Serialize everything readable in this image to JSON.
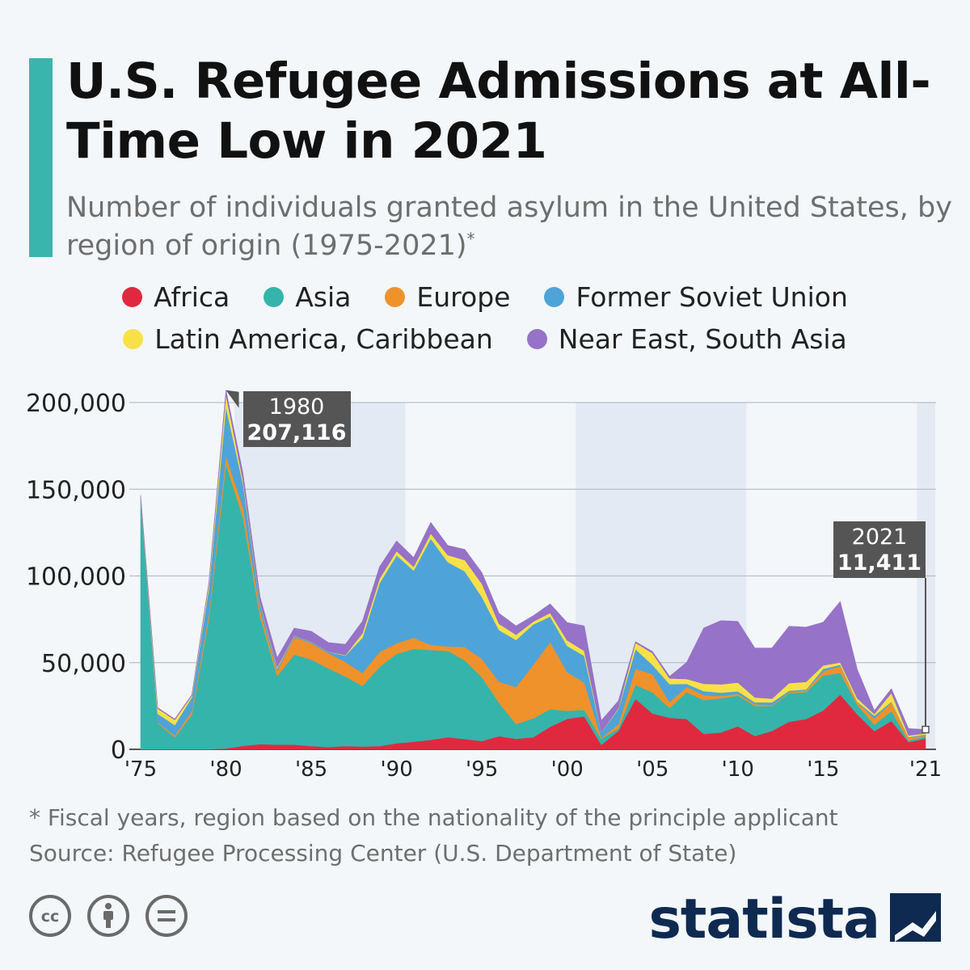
{
  "title": "U.S. Refugee Admissions at All-Time Low in 2021",
  "subtitle": "Number of individuals granted asylum in the United States, by region of origin (1975-2021)",
  "subtitle_mark": "*",
  "footnote": "* Fiscal years, region based on the nationality of the principle applicant",
  "source": "Source: Refugee Processing Center (U.S. Department of State)",
  "brand": "statista",
  "colors": {
    "accent": "#3ab5ad",
    "africa": "#e0293f",
    "asia": "#35b4ab",
    "europe": "#f0922b",
    "soviet": "#4ea4d8",
    "latin": "#f8e148",
    "neareast": "#9672c8",
    "brand": "#0e2a50"
  },
  "icons": [
    "cc-icon",
    "attribution-icon",
    "no-derivatives-icon",
    "statista-logo-icon"
  ],
  "chart_data": {
    "type": "area",
    "stacked": true,
    "ylim": [
      0,
      200000
    ],
    "y_ticks": [
      "0",
      "50,000",
      "100,000",
      "150,000",
      "200,000"
    ],
    "y_tick_values": [
      0,
      50000,
      100000,
      150000,
      200000
    ],
    "x_ticks": [
      "'75",
      "'80",
      "'85",
      "'90",
      "'95",
      "'00",
      "'05",
      "'10",
      "'15",
      "'21"
    ],
    "x_tick_years": [
      1975,
      1980,
      1985,
      1990,
      1995,
      2000,
      2005,
      2010,
      2015,
      2021
    ],
    "grid": true,
    "shaded_year_ranges": [
      [
        1981,
        1990
      ],
      [
        2001,
        2010
      ],
      [
        2021,
        2021
      ]
    ],
    "legend_position": "top",
    "x": [
      1975,
      1976,
      1977,
      1978,
      1979,
      1980,
      1981,
      1982,
      1983,
      1984,
      1985,
      1986,
      1987,
      1988,
      1989,
      1990,
      1991,
      1992,
      1993,
      1994,
      1995,
      1996,
      1997,
      1998,
      1999,
      2000,
      2001,
      2002,
      2003,
      2004,
      2005,
      2006,
      2007,
      2008,
      2009,
      2010,
      2011,
      2012,
      2013,
      2014,
      2015,
      2016,
      2017,
      2018,
      2019,
      2020,
      2021
    ],
    "series": [
      {
        "name": "Africa",
        "values": [
          0,
          0,
          0,
          0,
          0,
          500,
          2000,
          3000,
          2700,
          2700,
          1900,
          1300,
          1900,
          1600,
          1900,
          3500,
          4400,
          5500,
          7000,
          5900,
          4800,
          7600,
          6100,
          7000,
          13000,
          17600,
          19000,
          2600,
          10700,
          29100,
          20700,
          18200,
          17500,
          8900,
          9700,
          13300,
          7700,
          10600,
          15900,
          17500,
          22400,
          31600,
          20200,
          10500,
          16400,
          4200,
          6200
        ]
      },
      {
        "name": "Asia",
        "values": [
          145000,
          15000,
          7000,
          20000,
          75000,
          164000,
          131500,
          73500,
          39500,
          52000,
          49900,
          45400,
          40100,
          35000,
          45700,
          51600,
          53500,
          51800,
          49800,
          45400,
          36800,
          19300,
          8500,
          10800,
          10200,
          4600,
          3700,
          3500,
          1400,
          8100,
          12100,
          5600,
          15500,
          19500,
          19800,
          17700,
          17300,
          14300,
          16500,
          15500,
          20200,
          12500,
          5500,
          3700,
          5700,
          900,
          1300
        ]
      },
      {
        "name": "Europe",
        "values": [
          1000,
          500,
          1000,
          2000,
          3000,
          5000,
          6000,
          3600,
          3000,
          10000,
          9500,
          8700,
          8400,
          7400,
          8600,
          6100,
          6500,
          2900,
          2600,
          7700,
          10600,
          12100,
          21400,
          30800,
          38700,
          22300,
          15800,
          500,
          2400,
          9300,
          10500,
          3400,
          3000,
          2900,
          1300,
          1000,
          1000,
          400,
          600,
          1000,
          2400,
          3900,
          1500,
          3600,
          4900,
          1600,
          500
        ]
      },
      {
        "name": "Former Soviet Union",
        "values": [
          0,
          5000,
          6000,
          8000,
          15000,
          28000,
          13500,
          3800,
          1400,
          700,
          600,
          800,
          3700,
          20400,
          39600,
          50700,
          38700,
          61300,
          48600,
          43600,
          35700,
          29800,
          27100,
          23400,
          14700,
          15100,
          15400,
          3300,
          8700,
          11300,
          5400,
          10400,
          1800,
          2300,
          1900,
          1500,
          1100,
          1800,
          800,
          600,
          1400,
          800,
          300,
          1600,
          500,
          400,
          600
        ]
      },
      {
        "name": "Latin America, Caribbean",
        "values": [
          0,
          3000,
          3000,
          1000,
          2500,
          7000,
          2000,
          600,
          700,
          200,
          100,
          100,
          300,
          2500,
          2600,
          2400,
          2200,
          3000,
          4000,
          6500,
          7600,
          3600,
          3000,
          1600,
          2100,
          3200,
          2900,
          100,
          500,
          3600,
          6700,
          3300,
          2800,
          4200,
          4800,
          5000,
          2800,
          2100,
          4400,
          4300,
          2000,
          1300,
          1900,
          1000,
          5000,
          900,
          600
        ]
      },
      {
        "name": "Near East, South Asia",
        "values": [
          500,
          500,
          500,
          500,
          1000,
          2700,
          4100,
          3400,
          5500,
          4300,
          6100,
          5300,
          6200,
          7000,
          6900,
          5900,
          5300,
          6400,
          5600,
          6200,
          6400,
          6100,
          5100,
          3400,
          5200,
          10300,
          14400,
          6600,
          4300,
          700,
          1000,
          1200,
          9500,
          32200,
          36700,
          35300,
          28500,
          29300,
          32800,
          31600,
          24900,
          35200,
          16700,
          2000,
          2500,
          4000,
          2200
        ]
      }
    ],
    "callouts": [
      {
        "label_year": "1980",
        "label_value": "207,116",
        "year": 1980,
        "value": 207116
      },
      {
        "label_year": "2021",
        "label_value": "11,411",
        "year": 2021,
        "value": 11411
      }
    ]
  }
}
